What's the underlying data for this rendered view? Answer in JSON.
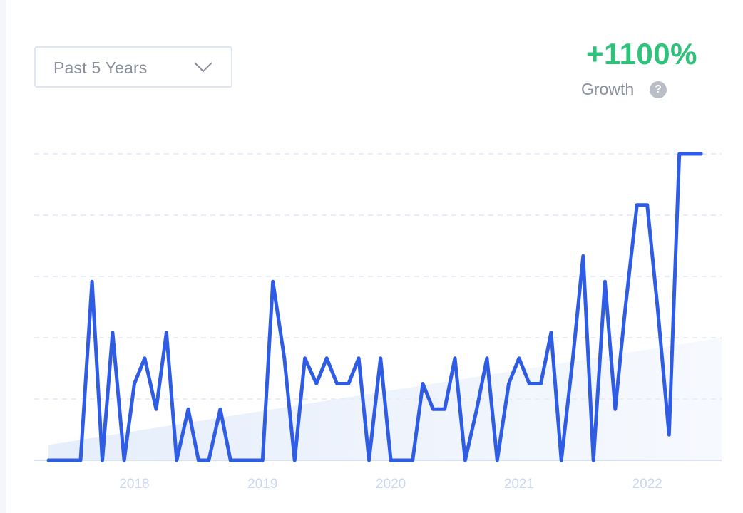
{
  "period_selector": {
    "label": "Past 5 Years",
    "icon": "chevron-down-icon"
  },
  "growth": {
    "value": "+1100%",
    "caption": "Growth",
    "help_icon": "question-circle-icon",
    "help_symbol": "?"
  },
  "colors": {
    "line": "#2f5ce4",
    "growth": "#2ec27a",
    "trend_fill": "#e6eefb",
    "grid": "#dfe7fb",
    "tick": "#c9d6f2"
  },
  "chart_data": {
    "type": "line",
    "x_tick_labels": [
      "2018",
      "2019",
      "2020",
      "2021",
      "2022"
    ],
    "x_tick_positions": [
      2018,
      2019,
      2020,
      2021,
      2022
    ],
    "xlim": [
      2017.33,
      2022.58
    ],
    "ylim": [
      0,
      6
    ],
    "grid": "horizontal dashed",
    "trend": {
      "start": 0.3,
      "end": 2.4
    },
    "series": [
      {
        "values": [
          [
            2017.33,
            0
          ],
          [
            2017.58,
            0
          ],
          [
            2017.67,
            3.5
          ],
          [
            2017.75,
            0
          ],
          [
            2017.83,
            2.5
          ],
          [
            2017.92,
            0
          ],
          [
            2018.0,
            1.5
          ],
          [
            2018.08,
            2.0
          ],
          [
            2018.17,
            1.0
          ],
          [
            2018.25,
            2.5
          ],
          [
            2018.33,
            0
          ],
          [
            2018.42,
            1.0
          ],
          [
            2018.5,
            0
          ],
          [
            2018.58,
            0
          ],
          [
            2018.67,
            1.0
          ],
          [
            2018.75,
            0
          ],
          [
            2018.83,
            0
          ],
          [
            2018.92,
            0
          ],
          [
            2019.0,
            0
          ],
          [
            2019.08,
            3.5
          ],
          [
            2019.17,
            2.0
          ],
          [
            2019.25,
            0
          ],
          [
            2019.33,
            2.0
          ],
          [
            2019.42,
            1.5
          ],
          [
            2019.5,
            2.0
          ],
          [
            2019.58,
            1.5
          ],
          [
            2019.67,
            1.5
          ],
          [
            2019.75,
            2.0
          ],
          [
            2019.83,
            0
          ],
          [
            2019.92,
            2.0
          ],
          [
            2020.0,
            0
          ],
          [
            2020.08,
            0
          ],
          [
            2020.17,
            0
          ],
          [
            2020.25,
            1.5
          ],
          [
            2020.33,
            1.0
          ],
          [
            2020.42,
            1.0
          ],
          [
            2020.5,
            2.0
          ],
          [
            2020.58,
            0
          ],
          [
            2020.67,
            1.0
          ],
          [
            2020.75,
            2.0
          ],
          [
            2020.83,
            0
          ],
          [
            2020.92,
            1.5
          ],
          [
            2021.0,
            2.0
          ],
          [
            2021.08,
            1.5
          ],
          [
            2021.17,
            1.5
          ],
          [
            2021.25,
            2.5
          ],
          [
            2021.33,
            0
          ],
          [
            2021.42,
            2.0
          ],
          [
            2021.5,
            4.0
          ],
          [
            2021.58,
            0
          ],
          [
            2021.67,
            3.5
          ],
          [
            2021.75,
            1.0
          ],
          [
            2021.83,
            3.0
          ],
          [
            2021.92,
            5.0
          ],
          [
            2022.0,
            5.0
          ],
          [
            2022.08,
            3.0
          ],
          [
            2022.17,
            0.5
          ],
          [
            2022.25,
            6.0
          ],
          [
            2022.33,
            6.0
          ],
          [
            2022.42,
            6.0
          ]
        ]
      }
    ]
  }
}
